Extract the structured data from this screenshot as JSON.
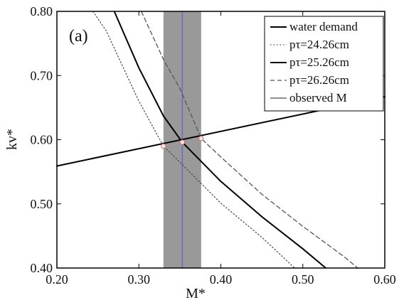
{
  "chart_data": {
    "type": "line",
    "panel_label": "(a)",
    "xlabel": "M*",
    "ylabel": "kv*",
    "xlim": [
      0.2,
      0.6
    ],
    "ylim": [
      0.4,
      0.8
    ],
    "xticks": [
      0.2,
      0.3,
      0.4,
      0.5,
      0.6
    ],
    "xtick_labels": [
      "0.20",
      "0.30",
      "0.40",
      "0.50",
      "0.60"
    ],
    "yticks": [
      0.4,
      0.5,
      0.6,
      0.7,
      0.8
    ],
    "ytick_labels": [
      "0.40",
      "0.50",
      "0.60",
      "0.70",
      "0.80"
    ],
    "grid": false,
    "legend_position": "top-right",
    "observed_band": {
      "x_min": 0.33,
      "x_max": 0.376,
      "line_x": 0.353
    },
    "series": [
      {
        "name": "water demand",
        "style": "solid",
        "x": [
          0.2,
          0.6
        ],
        "y": [
          0.559,
          0.667
        ]
      },
      {
        "name": "pτ=24.26cm",
        "style": "dotted",
        "x": [
          0.244,
          0.26,
          0.3,
          0.33,
          0.35,
          0.4,
          0.45,
          0.49
        ],
        "y": [
          0.8,
          0.77,
          0.66,
          0.59,
          0.565,
          0.501,
          0.448,
          0.4
        ]
      },
      {
        "name": "pτ=25.26cm",
        "style": "solid",
        "x": [
          0.27,
          0.3,
          0.33,
          0.353,
          0.4,
          0.45,
          0.5,
          0.528
        ],
        "y": [
          0.8,
          0.712,
          0.637,
          0.596,
          0.535,
          0.48,
          0.43,
          0.4
        ]
      },
      {
        "name": "pτ=26.26cm",
        "style": "dashed",
        "x": [
          0.303,
          0.33,
          0.35,
          0.376,
          0.4,
          0.45,
          0.5,
          0.55,
          0.567
        ],
        "y": [
          0.8,
          0.725,
          0.68,
          0.602,
          0.573,
          0.515,
          0.465,
          0.418,
          0.4
        ]
      },
      {
        "name": "observed M",
        "style": "band",
        "x": [
          0.353,
          0.353
        ],
        "y": [
          0.4,
          0.8
        ]
      }
    ],
    "intersections": [
      {
        "x": 0.33,
        "y": 0.59
      },
      {
        "x": 0.353,
        "y": 0.596
      },
      {
        "x": 0.376,
        "y": 0.602
      }
    ],
    "colors": {
      "series_line": "#000000",
      "dotted_line": "#444444",
      "dashed_line": "#555555",
      "band_fill": "#999999",
      "observed_line": "#6b6bc7",
      "legend_observed_line": "#8f8f8f",
      "marker_fill": "#f8e7e7",
      "marker_stroke": "#d86b6b"
    }
  }
}
